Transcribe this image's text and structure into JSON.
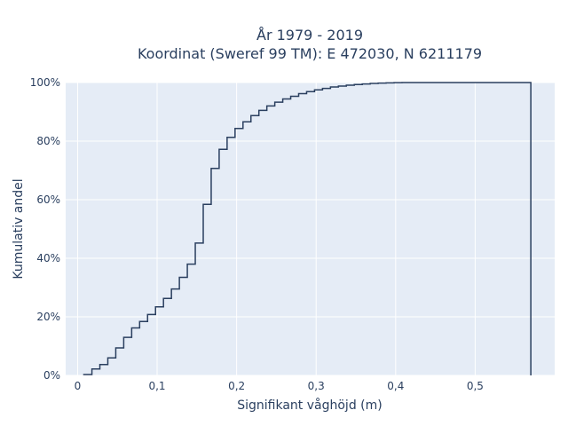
{
  "chart_data": {
    "type": "line",
    "step": true,
    "title_line1": "År 1979 - 2019",
    "title_line2": "Koordinat (Sweref 99 TM): E 472030, N 6211179",
    "xlabel": "Signifikant våghöjd (m)",
    "ylabel": "Kumulativ andel",
    "xlim": [
      -0.015,
      0.6
    ],
    "ylim": [
      0,
      1.0
    ],
    "x_ticks": [
      0,
      0.1,
      0.2,
      0.3,
      0.4,
      0.5
    ],
    "x_tick_labels": [
      "0",
      "0,1",
      "0,2",
      "0,3",
      "0,4",
      "0,5"
    ],
    "y_ticks": [
      0,
      0.2,
      0.4,
      0.6,
      0.8,
      1.0
    ],
    "y_tick_labels": [
      "0%",
      "20%",
      "40%",
      "60%",
      "80%",
      "100%"
    ],
    "grid": true,
    "colors": {
      "line": "#2a3f5f",
      "plot_bg": "#e5ecf6",
      "grid": "#ffffff"
    },
    "x": [
      0.007,
      0.018,
      0.028,
      0.038,
      0.048,
      0.058,
      0.068,
      0.078,
      0.088,
      0.098,
      0.108,
      0.118,
      0.128,
      0.138,
      0.148,
      0.158,
      0.168,
      0.178,
      0.188,
      0.198,
      0.208,
      0.218,
      0.228,
      0.238,
      0.248,
      0.258,
      0.268,
      0.278,
      0.288,
      0.298,
      0.308,
      0.318,
      0.328,
      0.338,
      0.348,
      0.358,
      0.368,
      0.378,
      0.388,
      0.398,
      0.408,
      0.57
    ],
    "y": [
      0.003,
      0.022,
      0.037,
      0.06,
      0.094,
      0.13,
      0.162,
      0.184,
      0.208,
      0.234,
      0.263,
      0.295,
      0.335,
      0.38,
      0.452,
      0.584,
      0.707,
      0.772,
      0.813,
      0.843,
      0.866,
      0.887,
      0.905,
      0.92,
      0.933,
      0.944,
      0.953,
      0.962,
      0.969,
      0.975,
      0.98,
      0.985,
      0.988,
      0.991,
      0.993,
      0.995,
      0.997,
      0.998,
      0.999,
      0.9995,
      1.0,
      0.0
    ]
  }
}
